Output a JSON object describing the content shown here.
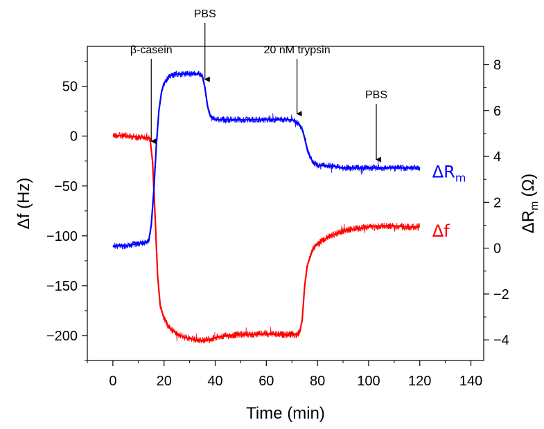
{
  "chart_data": {
    "type": "line",
    "xlabel": "Time (min)",
    "ylabel_left": "Δf (Hz)",
    "ylabel_right_main": "ΔR",
    "ylabel_right_sub": "m",
    "ylabel_right_unit": "(Ω)",
    "xlim": [
      -10,
      145
    ],
    "xticks": [
      "0",
      "20",
      "40",
      "60",
      "80",
      "100",
      "120",
      "140"
    ],
    "ylim_left": [
      -225,
      90
    ],
    "yticks_left": [
      "50",
      "0",
      "−50",
      "−100",
      "−150",
      "−200"
    ],
    "ylim_right": [
      -4.9,
      8.8
    ],
    "yticks_right": [
      "8",
      "6",
      "4",
      "2",
      "0",
      "−2",
      "−4"
    ],
    "series": [
      {
        "name": "Δf",
        "axis": "left",
        "color": "#ff0000",
        "x": [
          0,
          5,
          10,
          14.5,
          15.5,
          16.5,
          17.5,
          18.5,
          20,
          22,
          25,
          28,
          30,
          33,
          36,
          40,
          45,
          50,
          55,
          60,
          65,
          70,
          72,
          73,
          74,
          75,
          76,
          77,
          78,
          80,
          85,
          90,
          95,
          100,
          105,
          110,
          115,
          120
        ],
        "y": [
          1,
          0,
          -1,
          -2,
          -25,
          -80,
          -140,
          -170,
          -183,
          -192,
          -198,
          -202,
          -203,
          -205,
          -205,
          -202,
          -200,
          -199,
          -199,
          -198,
          -199,
          -199,
          -199,
          -197,
          -185,
          -150,
          -130,
          -122,
          -114,
          -108,
          -100,
          -95,
          -93,
          -91,
          -90,
          -90,
          -91,
          -91
        ]
      },
      {
        "name": "ΔR",
        "label_sub": "m",
        "axis": "right",
        "color": "#0000ff",
        "x": [
          0,
          5,
          10,
          14,
          15,
          16,
          17,
          18,
          19,
          20,
          22,
          25,
          30,
          34,
          35,
          36,
          37,
          38,
          39,
          40,
          45,
          50,
          60,
          70,
          72,
          74,
          75,
          76,
          77,
          78,
          80,
          85,
          90,
          100,
          110,
          120
        ],
        "y": [
          0.1,
          0.1,
          0.2,
          0.3,
          1.0,
          2.5,
          4.5,
          6.0,
          6.8,
          7.2,
          7.5,
          7.6,
          7.6,
          7.6,
          7.5,
          7.0,
          6.2,
          5.8,
          5.7,
          5.6,
          5.6,
          5.6,
          5.6,
          5.6,
          5.5,
          5.2,
          4.8,
          4.3,
          4.0,
          3.8,
          3.6,
          3.6,
          3.5,
          3.5,
          3.5,
          3.5
        ]
      }
    ],
    "annotations": [
      {
        "text": "β-casein",
        "x": 15,
        "arrow_to_series": "Δf"
      },
      {
        "text": "PBS",
        "x": 36,
        "arrow_to_series": "ΔR"
      },
      {
        "text": "20 nM trypsin",
        "x": 72,
        "arrow_to_series": "ΔR"
      },
      {
        "text": "PBS",
        "x": 103,
        "arrow_to_series": "ΔR"
      }
    ]
  }
}
